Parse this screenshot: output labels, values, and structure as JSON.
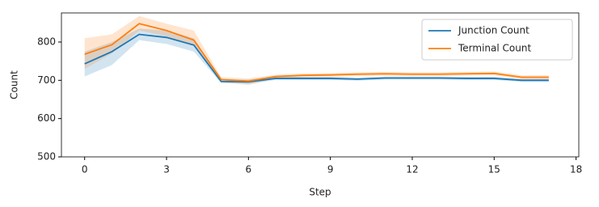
{
  "chart_data": {
    "type": "line",
    "x_label": "Step",
    "y_label": "Count",
    "x": [
      0,
      1,
      2,
      3,
      4,
      5,
      6,
      7,
      8,
      9,
      10,
      11,
      12,
      13,
      14,
      15,
      16,
      17
    ],
    "series": [
      {
        "name": "Junction Count",
        "color": "#1f77b4",
        "values": [
          743,
          775,
          820,
          812,
          792,
          697,
          696,
          705,
          705,
          705,
          703,
          706,
          706,
          706,
          705,
          705,
          700,
          700
        ],
        "ci_lower": [
          710,
          740,
          805,
          795,
          775,
          693,
          690,
          701,
          701,
          701,
          699,
          702,
          702,
          702,
          701,
          701,
          696,
          696
        ],
        "ci_upper": [
          775,
          800,
          835,
          830,
          810,
          702,
          702,
          709,
          709,
          709,
          707,
          710,
          710,
          710,
          709,
          709,
          704,
          704
        ]
      },
      {
        "name": "Terminal Count",
        "color": "#ff7f0e",
        "values": [
          768,
          793,
          848,
          830,
          805,
          702,
          698,
          710,
          713,
          714,
          716,
          717,
          716,
          716,
          717,
          718,
          708,
          708
        ],
        "ci_lower": [
          730,
          770,
          830,
          815,
          790,
          695,
          688,
          705,
          708,
          709,
          711,
          712,
          711,
          711,
          712,
          713,
          703,
          703
        ],
        "ci_upper": [
          810,
          820,
          868,
          848,
          830,
          708,
          705,
          715,
          718,
          719,
          721,
          722,
          721,
          721,
          722,
          723,
          713,
          713
        ]
      }
    ],
    "xlim": [
      -0.85,
      18.1
    ],
    "xticks": [
      0,
      3,
      6,
      9,
      12,
      15,
      18
    ],
    "ylim": [
      500,
      876
    ],
    "yticks": [
      500,
      600,
      700,
      800
    ],
    "legend": "upper right"
  }
}
